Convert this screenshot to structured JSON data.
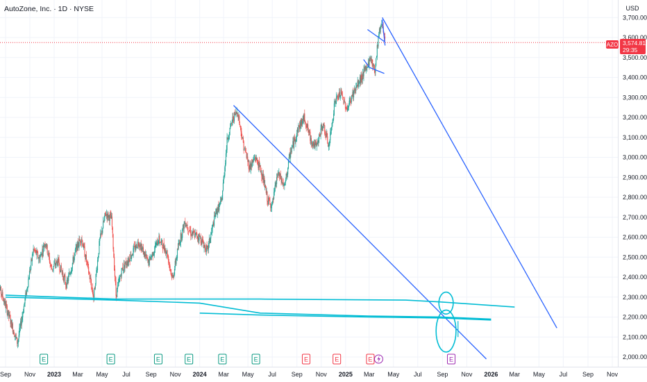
{
  "header": {
    "title": "AutoZone, Inc. · 1D · NYSE"
  },
  "price_scale": {
    "currency": "USD",
    "symbol": "AZO",
    "last_price": "3,574.81",
    "countdown": "29:35",
    "price_color": "#f23645"
  },
  "colors": {
    "up": "#26a69a",
    "down": "#ef5350",
    "trendline": "#2962ff",
    "support": "#00bcd4",
    "earnings_past": "#089981",
    "earnings_future": "#f23645",
    "dividend": "#9c27b0"
  },
  "chart_data": {
    "type": "candlestick",
    "symbol": "AZO",
    "interval": "1D",
    "exchange": "NYSE",
    "y_ticks": [
      "2,000.00",
      "2,100.00",
      "2,200.00",
      "2,300.00",
      "2,400.00",
      "2,500.00",
      "2,600.00",
      "2,700.00",
      "2,800.00",
      "2,900.00",
      "3,000.00",
      "3,100.00",
      "3,200.00",
      "3,300.00",
      "3,400.00",
      "3,500.00",
      "3,600.00",
      "3,700.00"
    ],
    "y_values": [
      2000,
      2100,
      2200,
      2300,
      2400,
      2500,
      2600,
      2700,
      2800,
      2900,
      3000,
      3100,
      3200,
      3300,
      3400,
      3500,
      3600,
      3700
    ],
    "x_ticks": [
      {
        "label": "Sep",
        "date": "2022-09-01",
        "bold": false
      },
      {
        "label": "Nov",
        "date": "2022-11-01",
        "bold": false
      },
      {
        "label": "2023",
        "date": "2023-01-01",
        "bold": true
      },
      {
        "label": "Mar",
        "date": "2023-03-01",
        "bold": false
      },
      {
        "label": "May",
        "date": "2023-05-01",
        "bold": false
      },
      {
        "label": "Jul",
        "date": "2023-07-01",
        "bold": false
      },
      {
        "label": "Sep",
        "date": "2023-09-01",
        "bold": false
      },
      {
        "label": "Nov",
        "date": "2023-11-01",
        "bold": false
      },
      {
        "label": "2024",
        "date": "2024-01-01",
        "bold": true
      },
      {
        "label": "Mar",
        "date": "2024-03-01",
        "bold": false
      },
      {
        "label": "May",
        "date": "2024-05-01",
        "bold": false
      },
      {
        "label": "Jul",
        "date": "2024-07-01",
        "bold": false
      },
      {
        "label": "Sep",
        "date": "2024-09-01",
        "bold": false
      },
      {
        "label": "Nov",
        "date": "2024-11-01",
        "bold": false
      },
      {
        "label": "2025",
        "date": "2025-01-01",
        "bold": true
      },
      {
        "label": "Mar",
        "date": "2025-03-01",
        "bold": false
      },
      {
        "label": "May",
        "date": "2025-05-01",
        "bold": false
      },
      {
        "label": "Jul",
        "date": "2025-07-01",
        "bold": false
      },
      {
        "label": "Sep",
        "date": "2025-09-01",
        "bold": false
      },
      {
        "label": "Nov",
        "date": "2025-11-01",
        "bold": false
      },
      {
        "label": "2026",
        "date": "2026-01-01",
        "bold": true
      },
      {
        "label": "Mar",
        "date": "2026-03-01",
        "bold": false
      },
      {
        "label": "May",
        "date": "2026-05-01",
        "bold": false
      },
      {
        "label": "Jul",
        "date": "2026-07-01",
        "bold": false
      },
      {
        "label": "Sep",
        "date": "2026-09-01",
        "bold": false
      },
      {
        "label": "Nov",
        "date": "2026-11-01",
        "bold": false
      }
    ],
    "price_path": [
      [
        "2022-08-08",
        2390
      ],
      [
        "2022-08-25",
        2300
      ],
      [
        "2022-09-15",
        2170
      ],
      [
        "2022-10-01",
        2070
      ],
      [
        "2022-10-20",
        2290
      ],
      [
        "2022-11-10",
        2540
      ],
      [
        "2022-11-25",
        2490
      ],
      [
        "2022-12-10",
        2580
      ],
      [
        "2022-12-25",
        2440
      ],
      [
        "2023-01-10",
        2480
      ],
      [
        "2023-02-01",
        2360
      ],
      [
        "2023-02-25",
        2540
      ],
      [
        "2023-03-10",
        2600
      ],
      [
        "2023-03-25",
        2460
      ],
      [
        "2023-04-10",
        2300
      ],
      [
        "2023-04-25",
        2580
      ],
      [
        "2023-05-10",
        2720
      ],
      [
        "2023-05-25",
        2690
      ],
      [
        "2023-06-05",
        2310
      ],
      [
        "2023-06-20",
        2440
      ],
      [
        "2023-07-10",
        2500
      ],
      [
        "2023-08-01",
        2580
      ],
      [
        "2023-08-25",
        2470
      ],
      [
        "2023-09-20",
        2590
      ],
      [
        "2023-10-10",
        2530
      ],
      [
        "2023-10-25",
        2390
      ],
      [
        "2023-11-10",
        2570
      ],
      [
        "2023-11-25",
        2680
      ],
      [
        "2023-12-10",
        2620
      ],
      [
        "2024-01-01",
        2600
      ],
      [
        "2024-01-20",
        2530
      ],
      [
        "2024-02-10",
        2720
      ],
      [
        "2024-02-25",
        2780
      ],
      [
        "2024-03-10",
        3090
      ],
      [
        "2024-03-25",
        3200
      ],
      [
        "2024-04-05",
        3230
      ],
      [
        "2024-04-20",
        3060
      ],
      [
        "2024-05-05",
        2950
      ],
      [
        "2024-05-20",
        3000
      ],
      [
        "2024-06-05",
        2920
      ],
      [
        "2024-06-20",
        2780
      ],
      [
        "2024-07-01",
        2760
      ],
      [
        "2024-07-15",
        2920
      ],
      [
        "2024-08-01",
        2850
      ],
      [
        "2024-08-15",
        3020
      ],
      [
        "2024-09-05",
        3150
      ],
      [
        "2024-09-20",
        3200
      ],
      [
        "2024-10-05",
        3090
      ],
      [
        "2024-10-20",
        3050
      ],
      [
        "2024-11-05",
        3170
      ],
      [
        "2024-11-20",
        3050
      ],
      [
        "2024-12-05",
        3280
      ],
      [
        "2024-12-20",
        3320
      ],
      [
        "2025-01-05",
        3240
      ],
      [
        "2025-01-20",
        3320
      ],
      [
        "2025-02-05",
        3380
      ],
      [
        "2025-02-20",
        3440
      ],
      [
        "2025-03-05",
        3500
      ],
      [
        "2025-03-15",
        3430
      ],
      [
        "2025-03-25",
        3620
      ],
      [
        "2025-04-03",
        3680
      ],
      [
        "2025-04-10",
        3575
      ]
    ],
    "earnings_markers": [
      {
        "date": "2022-12-06",
        "label": "E",
        "kind": "past"
      },
      {
        "date": "2023-05-23",
        "label": "E",
        "kind": "past"
      },
      {
        "date": "2023-09-19",
        "label": "E",
        "kind": "past"
      },
      {
        "date": "2023-12-05",
        "label": "E",
        "kind": "past"
      },
      {
        "date": "2024-02-27",
        "label": "E",
        "kind": "past"
      },
      {
        "date": "2024-05-21",
        "label": "E",
        "kind": "past"
      },
      {
        "date": "2024-09-24",
        "label": "E",
        "kind": "future"
      },
      {
        "date": "2024-12-10",
        "label": "E",
        "kind": "future"
      },
      {
        "date": "2025-03-04",
        "label": "E",
        "kind": "future"
      },
      {
        "date": "2025-09-23",
        "label": "E",
        "kind": "dividend"
      }
    ],
    "drawings": {
      "trendlines": [
        [
          [
            "2024-03-26",
            3260
          ],
          [
            "2025-12-20",
            1990
          ]
        ],
        [
          [
            "2025-04-03",
            3700
          ],
          [
            "2026-06-15",
            2145
          ]
        ],
        [
          [
            "2025-02-25",
            3640
          ],
          [
            "2025-04-08",
            3580
          ]
        ],
        [
          [
            "2025-04-03",
            3690
          ],
          [
            "2025-04-10",
            3560
          ]
        ],
        [
          [
            "2025-02-15",
            3490
          ],
          [
            "2025-03-02",
            3450
          ]
        ],
        [
          [
            "2025-03-02",
            3450
          ],
          [
            "2025-04-08",
            3420
          ]
        ]
      ],
      "support_lines": [
        [
          [
            "2022-09-01",
            2310
          ],
          [
            "2023-06-01",
            2290
          ],
          [
            "2024-06-01",
            2290
          ],
          [
            "2025-06-01",
            2285
          ],
          [
            "2025-09-01",
            2275
          ],
          [
            "2026-03-01",
            2250
          ]
        ],
        [
          [
            "2022-09-01",
            2300
          ],
          [
            "2023-06-01",
            2285
          ],
          [
            "2024-01-01",
            2270
          ],
          [
            "2024-06-01",
            2220
          ],
          [
            "2025-03-01",
            2205
          ],
          [
            "2025-09-01",
            2200
          ],
          [
            "2026-01-01",
            2190
          ]
        ],
        [
          [
            "2024-01-01",
            2220
          ],
          [
            "2024-06-01",
            2210
          ],
          [
            "2025-03-01",
            2200
          ],
          [
            "2025-09-01",
            2195
          ],
          [
            "2026-01-01",
            2185
          ]
        ]
      ],
      "circles": [
        {
          "center": [
            "2025-09-10",
            2270
          ],
          "radius_days": 18,
          "radius_price": 55
        },
        {
          "center": [
            "2025-09-10",
            2130
          ],
          "radius_days": 25,
          "radius_price": 105
        }
      ],
      "tick_marks": [
        [
          [
            "2025-10-10",
            2180
          ],
          [
            "2025-10-10",
            2100
          ]
        ]
      ]
    }
  }
}
